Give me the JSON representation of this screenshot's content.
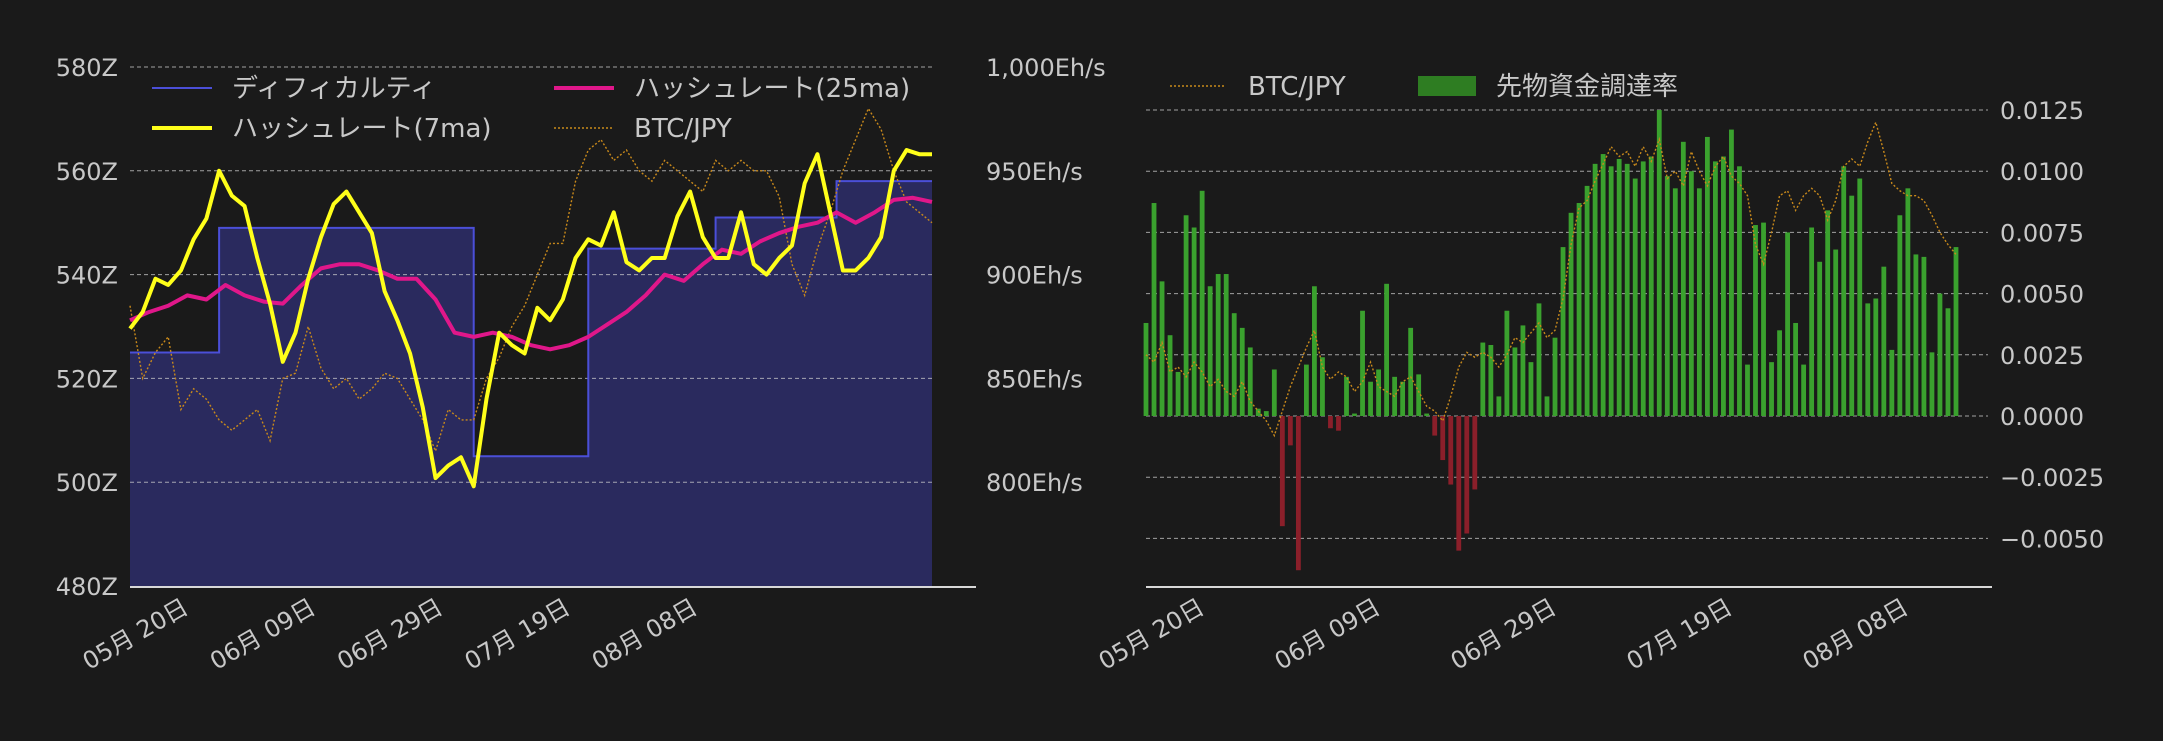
{
  "chart_data": [
    {
      "type": "line",
      "x_ticks": [
        "05月 20日",
        "06月 09日",
        "06月 29日",
        "07月 19日",
        "08月 08日"
      ],
      "left_axis": {
        "ticks": [
          "580Z",
          "560Z",
          "540Z",
          "520Z",
          "500Z",
          "480Z"
        ],
        "ylim": [
          480,
          580
        ]
      },
      "right_axis": {
        "ticks": [
          "1,000Eh/s",
          "950Eh/s",
          "900Eh/s",
          "850Eh/s",
          "800Eh/s"
        ],
        "ylim": [
          750,
          1000
        ]
      },
      "grid": "horizontal dashed",
      "legend_position": "top",
      "legend": [
        {
          "label": "ディフィカルティ",
          "color": "#4b4fd8"
        },
        {
          "label": "ハッシュレート(25ma)",
          "color": "#e0178a"
        },
        {
          "label": "ハッシュレート(7ma)",
          "color": "#ffff1a"
        },
        {
          "label": "BTC/JPY",
          "color": "#c8891b"
        }
      ],
      "series": [
        {
          "name": "ディフィカルティ",
          "style": "step-area",
          "axis": "left",
          "color": "#4b4fd8",
          "fill": "#2a2a5e",
          "steps": [
            [
              0,
              525
            ],
            [
              14,
              525
            ],
            [
              14,
              549
            ],
            [
              54,
              549
            ],
            [
              54,
              505
            ],
            [
              72,
              505
            ],
            [
              72,
              545
            ],
            [
              92,
              545
            ],
            [
              92,
              551
            ],
            [
              111,
              551
            ],
            [
              111,
              558
            ],
            [
              126,
              558
            ]
          ]
        },
        {
          "name": "ハッシュレート(25ma)",
          "axis": "right",
          "color": "#e0178a",
          "values": [
            [
              0,
              878
            ],
            [
              3,
              882
            ],
            [
              6,
              885
            ],
            [
              9,
              890
            ],
            [
              12,
              888
            ],
            [
              15,
              895
            ],
            [
              18,
              890
            ],
            [
              21,
              887
            ],
            [
              24,
              886
            ],
            [
              27,
              895
            ],
            [
              30,
              903
            ],
            [
              33,
              905
            ],
            [
              36,
              905
            ],
            [
              39,
              902
            ],
            [
              42,
              898
            ],
            [
              45,
              898
            ],
            [
              48,
              888
            ],
            [
              51,
              872
            ],
            [
              54,
              870
            ],
            [
              57,
              872
            ],
            [
              60,
              870
            ],
            [
              63,
              866
            ],
            [
              66,
              864
            ],
            [
              69,
              866
            ],
            [
              72,
              870
            ],
            [
              75,
              876
            ],
            [
              78,
              882
            ],
            [
              81,
              890
            ],
            [
              84,
              900
            ],
            [
              87,
              897
            ],
            [
              90,
              905
            ],
            [
              93,
              912
            ],
            [
              96,
              910
            ],
            [
              99,
              916
            ],
            [
              102,
              920
            ],
            [
              105,
              923
            ],
            [
              108,
              925
            ],
            [
              111,
              930
            ],
            [
              114,
              925
            ],
            [
              117,
              930
            ],
            [
              120,
              936
            ],
            [
              123,
              937
            ],
            [
              126,
              935
            ]
          ]
        },
        {
          "name": "ハッシュレート(7ma)",
          "axis": "right",
          "color": "#ffff1a",
          "values": [
            [
              0,
              874
            ],
            [
              2,
              882
            ],
            [
              4,
              898
            ],
            [
              6,
              895
            ],
            [
              8,
              902
            ],
            [
              10,
              917
            ],
            [
              12,
              927
            ],
            [
              14,
              950
            ],
            [
              16,
              938
            ],
            [
              18,
              933
            ],
            [
              20,
              908
            ],
            [
              22,
              886
            ],
            [
              24,
              858
            ],
            [
              26,
              872
            ],
            [
              28,
              898
            ],
            [
              30,
              918
            ],
            [
              32,
              934
            ],
            [
              34,
              940
            ],
            [
              36,
              930
            ],
            [
              38,
              920
            ],
            [
              40,
              892
            ],
            [
              42,
              878
            ],
            [
              44,
              862
            ],
            [
              46,
              836
            ],
            [
              48,
              802
            ],
            [
              50,
              808
            ],
            [
              52,
              812
            ],
            [
              54,
              798
            ],
            [
              56,
              840
            ],
            [
              58,
              872
            ],
            [
              60,
              866
            ],
            [
              62,
              862
            ],
            [
              64,
              884
            ],
            [
              66,
              878
            ],
            [
              68,
              888
            ],
            [
              70,
              908
            ],
            [
              72,
              917
            ],
            [
              74,
              914
            ],
            [
              76,
              930
            ],
            [
              78,
              906
            ],
            [
              80,
              902
            ],
            [
              82,
              908
            ],
            [
              84,
              908
            ],
            [
              86,
              928
            ],
            [
              88,
              940
            ],
            [
              90,
              918
            ],
            [
              92,
              908
            ],
            [
              94,
              908
            ],
            [
              96,
              930
            ],
            [
              98,
              905
            ],
            [
              100,
              900
            ],
            [
              102,
              908
            ],
            [
              104,
              914
            ],
            [
              106,
              944
            ],
            [
              108,
              958
            ],
            [
              110,
              930
            ],
            [
              112,
              902
            ],
            [
              114,
              902
            ],
            [
              116,
              908
            ],
            [
              118,
              918
            ],
            [
              120,
              950
            ],
            [
              122,
              960
            ],
            [
              124,
              958
            ],
            [
              126,
              958
            ]
          ]
        },
        {
          "name": "BTC/JPY",
          "axis": "left",
          "color": "#c8891b",
          "style": "dotted",
          "values": [
            [
              0,
              534
            ],
            [
              2,
              520
            ],
            [
              4,
              525
            ],
            [
              6,
              528
            ],
            [
              8,
              514
            ],
            [
              10,
              518
            ],
            [
              12,
              516
            ],
            [
              14,
              512
            ],
            [
              16,
              510
            ],
            [
              18,
              512
            ],
            [
              20,
              514
            ],
            [
              22,
              508
            ],
            [
              24,
              520
            ],
            [
              26,
              521
            ],
            [
              28,
              530
            ],
            [
              30,
              522
            ],
            [
              32,
              518
            ],
            [
              34,
              520
            ],
            [
              36,
              516
            ],
            [
              38,
              518
            ],
            [
              40,
              521
            ],
            [
              42,
              520
            ],
            [
              44,
              516
            ],
            [
              46,
              512
            ],
            [
              48,
              506
            ],
            [
              50,
              514
            ],
            [
              52,
              512
            ],
            [
              54,
              512
            ],
            [
              56,
              520
            ],
            [
              58,
              524
            ],
            [
              60,
              530
            ],
            [
              62,
              534
            ],
            [
              64,
              540
            ],
            [
              66,
              546
            ],
            [
              68,
              546
            ],
            [
              70,
              558
            ],
            [
              72,
              564
            ],
            [
              74,
              566
            ],
            [
              76,
              562
            ],
            [
              78,
              564
            ],
            [
              80,
              560
            ],
            [
              82,
              558
            ],
            [
              84,
              562
            ],
            [
              86,
              560
            ],
            [
              88,
              558
            ],
            [
              90,
              556
            ],
            [
              92,
              562
            ],
            [
              94,
              560
            ],
            [
              96,
              562
            ],
            [
              98,
              560
            ],
            [
              100,
              560
            ],
            [
              102,
              555
            ],
            [
              104,
              542
            ],
            [
              106,
              536
            ],
            [
              108,
              545
            ],
            [
              110,
              552
            ],
            [
              112,
              560
            ],
            [
              114,
              566
            ],
            [
              116,
              572
            ],
            [
              118,
              568
            ],
            [
              120,
              560
            ],
            [
              122,
              554
            ],
            [
              124,
              552
            ],
            [
              126,
              550
            ]
          ]
        }
      ]
    },
    {
      "type": "bar",
      "x_ticks": [
        "05月 20日",
        "06月 09日",
        "06月 29日",
        "07月 19日",
        "08月 08日"
      ],
      "y_ticks": [
        "0.0125",
        "0.0100",
        "0.0075",
        "0.0050",
        "0.0025",
        "0.0000",
        "−0.0025",
        "−0.0050"
      ],
      "ylim": [
        -0.0065,
        0.0125
      ],
      "grid": "horizontal dashed",
      "legend_position": "top",
      "legend": [
        {
          "label": "BTC/JPY",
          "color": "#c8891b"
        },
        {
          "label": "先物資金調達率",
          "color": "#2e7d22"
        }
      ],
      "series": [
        {
          "name": "先物資金調達率",
          "positive_color": "#3aa12e",
          "negative_color": "#8b1f2a",
          "values": [
            0.0038,
            0.0087,
            0.0055,
            0.0033,
            0.0018,
            0.0082,
            0.0077,
            0.0092,
            0.0053,
            0.0058,
            0.0058,
            0.0042,
            0.0036,
            0.0028,
            0.0003,
            0.0002,
            0.0019,
            -0.0045,
            -0.0012,
            -0.0063,
            0.0021,
            0.0053,
            0.0024,
            -0.0005,
            -0.0006,
            0.0016,
            0.0001,
            0.0043,
            0.0014,
            0.0019,
            0.0054,
            0.0016,
            0.0014,
            0.0036,
            0.0017,
            0.0001,
            -0.0008,
            -0.0018,
            -0.0028,
            -0.0055,
            -0.0048,
            -0.003,
            0.003,
            0.0029,
            0.0008,
            0.0043,
            0.0028,
            0.0037,
            0.0022,
            0.0046,
            0.0008,
            0.0032,
            0.0069,
            0.0083,
            0.0087,
            0.0094,
            0.0103,
            0.0107,
            0.0102,
            0.0105,
            0.0103,
            0.0097,
            0.0104,
            0.0106,
            0.0125,
            0.0098,
            0.0093,
            0.0112,
            0.01,
            0.0093,
            0.0114,
            0.0104,
            0.0106,
            0.0117,
            0.0102,
            0.0021,
            0.0078,
            0.0079,
            0.0022,
            0.0035,
            0.0075,
            0.0038,
            0.0021,
            0.0077,
            0.0063,
            0.0084,
            0.0068,
            0.0102,
            0.009,
            0.0097,
            0.0046,
            0.0048,
            0.0061,
            0.0027,
            0.0082,
            0.0093,
            0.0066,
            0.0065,
            0.0026,
            0.005,
            0.0044,
            0.0069
          ]
        },
        {
          "name": "BTC/JPY",
          "style": "dotted",
          "color": "#c8891b",
          "values": [
            0.0025,
            0.0022,
            0.003,
            0.0018,
            0.002,
            0.0016,
            0.0022,
            0.0018,
            0.0012,
            0.0015,
            0.001,
            0.0008,
            0.0014,
            0.0006,
            0.0002,
            -0.0002,
            -0.0008,
            0.0002,
            0.0012,
            0.002,
            0.0028,
            0.0035,
            0.002,
            0.0015,
            0.0018,
            0.0016,
            0.001,
            0.0014,
            0.0022,
            0.0012,
            0.001,
            0.0008,
            0.0014,
            0.0016,
            0.001,
            0.0004,
            0.0002,
            -0.0002,
            0.0008,
            0.002,
            0.0026,
            0.0024,
            0.0026,
            0.0024,
            0.002,
            0.0025,
            0.0032,
            0.003,
            0.0034,
            0.0038,
            0.0032,
            0.0035,
            0.0048,
            0.007,
            0.0085,
            0.0088,
            0.0096,
            0.0103,
            0.011,
            0.0106,
            0.0108,
            0.0102,
            0.011,
            0.0104,
            0.0113,
            0.0097,
            0.01,
            0.0094,
            0.0108,
            0.01,
            0.0094,
            0.0102,
            0.0106,
            0.0098,
            0.0095,
            0.009,
            0.007,
            0.0062,
            0.0075,
            0.009,
            0.0092,
            0.0084,
            0.009,
            0.0093,
            0.009,
            0.008,
            0.0088,
            0.0102,
            0.0105,
            0.0102,
            0.0112,
            0.012,
            0.0108,
            0.0095,
            0.0092,
            0.009,
            0.009,
            0.0088,
            0.0082,
            0.0075,
            0.007,
            0.0066
          ]
        }
      ]
    }
  ]
}
